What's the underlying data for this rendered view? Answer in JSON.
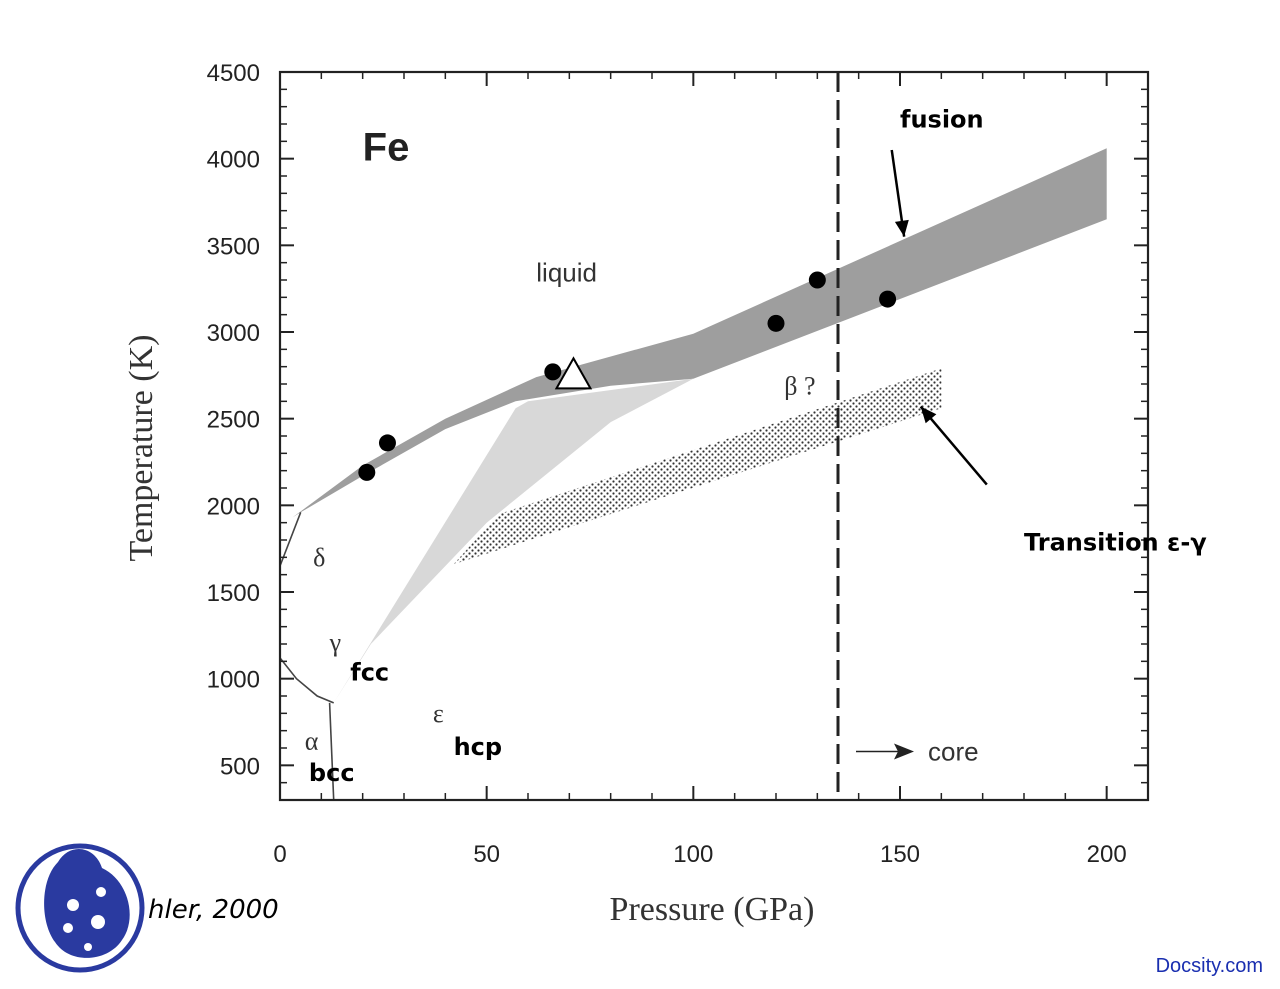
{
  "chart_data": {
    "type": "area",
    "title": "Fe",
    "xlabel": "Pressure  (GPa)",
    "ylabel": "Temperature  (K)",
    "xlim": [
      0,
      210
    ],
    "ylim": [
      300,
      4500
    ],
    "x_ticks": [
      0,
      50,
      100,
      150,
      200
    ],
    "y_ticks": [
      500,
      1000,
      1500,
      2000,
      2500,
      3000,
      3500,
      4000,
      4500
    ],
    "grid": false,
    "regions": [
      {
        "name": "fusion",
        "kind": "band",
        "color": "#9e9e9e",
        "lower": [
          [
            5,
            1960
          ],
          [
            20,
            2170
          ],
          [
            40,
            2440
          ],
          [
            57,
            2600
          ],
          [
            80,
            2690
          ],
          [
            100,
            2730
          ],
          [
            200,
            3650
          ]
        ],
        "upper": [
          [
            3,
            1930
          ],
          [
            20,
            2230
          ],
          [
            40,
            2500
          ],
          [
            62,
            2740
          ],
          [
            100,
            2990
          ],
          [
            200,
            4060
          ]
        ]
      },
      {
        "name": "γ fcc",
        "kind": "polygon",
        "color": "#d8d8d8",
        "points": [
          [
            13,
            860
          ],
          [
            57,
            2560
          ],
          [
            60,
            2600
          ],
          [
            100,
            2730
          ],
          [
            80,
            2480
          ],
          [
            50,
            1900
          ],
          [
            22,
            1200
          ]
        ]
      },
      {
        "name": "Transition ε-γ",
        "kind": "band",
        "color": "#555555",
        "pattern": "stipple",
        "lower": [
          [
            42,
            1660
          ],
          [
            160,
            2560
          ]
        ],
        "upper": [
          [
            53,
            1950
          ],
          [
            160,
            2790
          ]
        ]
      }
    ],
    "boundaries": [
      {
        "name": "α-γ",
        "points": [
          [
            0,
            1120
          ],
          [
            4,
            1000
          ],
          [
            9,
            900
          ],
          [
            13,
            860
          ]
        ]
      },
      {
        "name": "α-ε",
        "points": [
          [
            12,
            860
          ],
          [
            13,
            300
          ]
        ]
      },
      {
        "name": "δ",
        "points": [
          [
            0,
            1650
          ],
          [
            5,
            1960
          ]
        ]
      }
    ],
    "series": [
      {
        "name": "",
        "marker": "circle",
        "x": [
          21,
          26,
          66,
          120,
          130,
          147
        ],
        "y": [
          2190,
          2360,
          2770,
          3050,
          3300,
          3190
        ]
      },
      {
        "name": "",
        "marker": "triangle",
        "x": [
          71
        ],
        "y": [
          2750
        ]
      }
    ],
    "reference_line": {
      "x": 135,
      "style": "dashed",
      "label": "core"
    },
    "annotations": [
      {
        "text": "liquid",
        "x": 62,
        "y": 3290,
        "style": "sans"
      },
      {
        "text": "β ?",
        "x": 122,
        "y": 2640,
        "style": "serif"
      },
      {
        "text": "δ",
        "x": 8,
        "y": 1650,
        "style": "serif"
      },
      {
        "text": "γ",
        "x": 12,
        "y": 1160,
        "style": "serif"
      },
      {
        "text": "fcc",
        "x": 17,
        "y": 990,
        "style": "hand"
      },
      {
        "text": "ε",
        "x": 37,
        "y": 750,
        "style": "serif"
      },
      {
        "text": "hcp",
        "x": 42,
        "y": 560,
        "style": "hand"
      },
      {
        "text": "α",
        "x": 6,
        "y": 590,
        "style": "serif"
      },
      {
        "text": "bcc",
        "x": 7,
        "y": 410,
        "style": "hand"
      },
      {
        "text": "fusion",
        "x": 150,
        "y": 4180,
        "style": "hand"
      },
      {
        "text": "Transition ε-γ",
        "x": 180,
        "y": 1740,
        "style": "hand"
      }
    ]
  },
  "citation": "hler, 2000",
  "watermark": "Docsity.com"
}
